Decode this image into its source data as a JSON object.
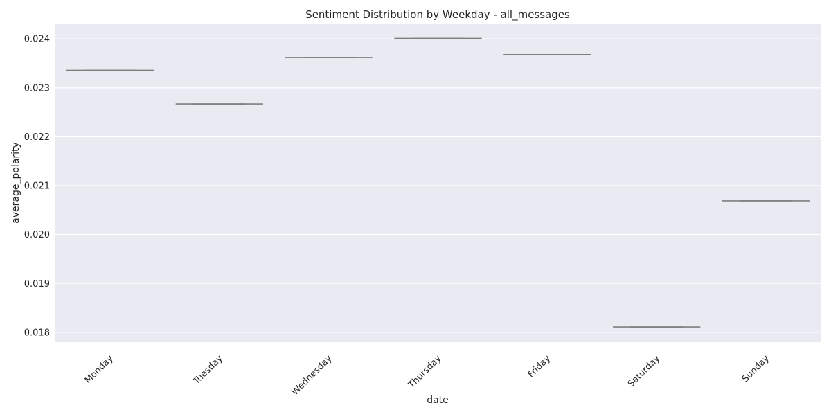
{
  "chart_data": {
    "type": "boxplot",
    "title": "Sentiment Distribution by Weekday - all_messages",
    "xlabel": "date",
    "ylabel": "average_polarity",
    "categories": [
      "Monday",
      "Tuesday",
      "Wednesday",
      "Thursday",
      "Friday",
      "Saturday",
      "Sunday"
    ],
    "values": [
      0.02336,
      0.02267,
      0.02362,
      0.02401,
      0.02368,
      0.01811,
      0.02069
    ],
    "yticks": [
      0.018,
      0.019,
      0.02,
      0.021,
      0.022,
      0.023,
      0.024
    ],
    "ytick_labels": [
      "0.018",
      "0.019",
      "0.020",
      "0.021",
      "0.022",
      "0.023",
      "0.024"
    ],
    "ylim": [
      0.0178,
      0.0243
    ],
    "grid": true,
    "colors": {
      "plot_background": "#eaeaf2",
      "grid": "#ffffff",
      "box_line": "#7f7f7f",
      "text": "#262626"
    }
  }
}
